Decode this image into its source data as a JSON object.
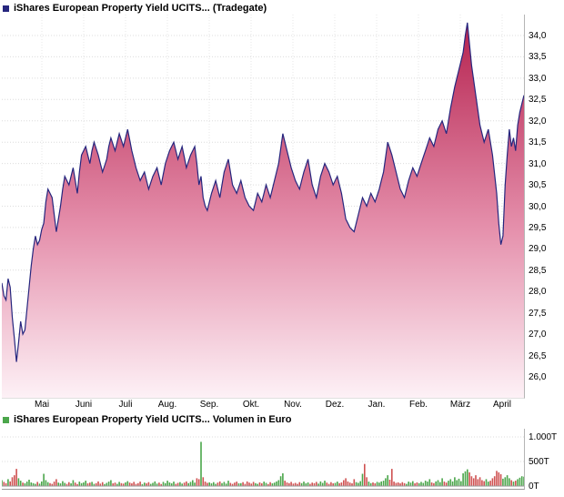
{
  "chart_data": [
    {
      "type": "area",
      "title": "iShares European Property Yield UCITS... (Tradegate)",
      "xlabel": "",
      "ylabel": "",
      "ylim": [
        26.0,
        34.0
      ],
      "y_tick_step": 0.5,
      "grid": true,
      "legend_position": "none",
      "line_color": "#26267e",
      "fill_top_color": "#b5224f",
      "fill_mid_color": "#e590ac",
      "fill_bottom_color": "#fdf1f6",
      "y_ticks": [
        "34,0",
        "33,5",
        "33,0",
        "32,5",
        "32,0",
        "31,5",
        "31,0",
        "30,5",
        "30,0",
        "29,5",
        "29,0",
        "28,5",
        "28,0",
        "27,5",
        "27,0",
        "26,5",
        "26,0"
      ],
      "x_ticks": [
        "Mai",
        "Juni",
        "Juli",
        "Aug.",
        "Sep.",
        "Okt.",
        "Nov.",
        "Dez.",
        "Jan.",
        "Feb.",
        "März",
        "April"
      ],
      "prices": [
        28.2,
        27.9,
        27.8,
        28.3,
        28.1,
        27.4,
        26.9,
        26.35,
        26.8,
        27.3,
        27.0,
        27.1,
        27.6,
        28.1,
        28.6,
        29.0,
        29.3,
        29.1,
        29.2,
        29.45,
        29.6,
        30.1,
        30.4,
        30.3,
        30.2,
        29.8,
        29.4,
        29.7,
        30.0,
        30.4,
        30.7,
        30.6,
        30.5,
        30.7,
        30.9,
        30.6,
        30.3,
        30.8,
        31.2,
        31.3,
        31.4,
        31.2,
        31.0,
        31.3,
        31.5,
        31.35,
        31.2,
        31.0,
        30.8,
        30.95,
        31.1,
        31.4,
        31.6,
        31.45,
        31.3,
        31.5,
        31.7,
        31.55,
        31.4,
        31.6,
        31.8,
        31.55,
        31.3,
        31.1,
        30.9,
        30.75,
        30.6,
        30.7,
        30.8,
        30.6,
        30.4,
        30.55,
        30.7,
        30.8,
        30.9,
        30.7,
        30.5,
        30.75,
        31.0,
        31.15,
        31.3,
        31.4,
        31.5,
        31.3,
        31.1,
        31.25,
        31.4,
        31.15,
        30.9,
        31.05,
        31.2,
        31.3,
        31.4,
        31.0,
        30.5,
        30.7,
        30.2,
        30.0,
        29.9,
        30.1,
        30.3,
        30.45,
        30.6,
        30.4,
        30.2,
        30.5,
        30.8,
        30.95,
        31.1,
        30.8,
        30.5,
        30.4,
        30.3,
        30.45,
        30.6,
        30.4,
        30.2,
        30.1,
        30.0,
        29.95,
        29.9,
        30.1,
        30.3,
        30.2,
        30.1,
        30.3,
        30.5,
        30.35,
        30.2,
        30.4,
        30.6,
        30.8,
        31.0,
        31.35,
        31.7,
        31.5,
        31.3,
        31.1,
        30.9,
        30.75,
        30.6,
        30.5,
        30.4,
        30.6,
        30.8,
        30.95,
        31.1,
        30.8,
        30.5,
        30.35,
        30.2,
        30.45,
        30.7,
        30.85,
        31.0,
        30.9,
        30.8,
        30.65,
        30.5,
        30.6,
        30.7,
        30.5,
        30.3,
        30.0,
        29.7,
        29.6,
        29.5,
        29.45,
        29.4,
        29.6,
        29.8,
        30.0,
        30.2,
        30.1,
        30.0,
        30.15,
        30.3,
        30.2,
        30.1,
        30.25,
        30.4,
        30.6,
        30.8,
        31.15,
        31.5,
        31.35,
        31.2,
        31.0,
        30.8,
        30.6,
        30.4,
        30.3,
        30.2,
        30.4,
        30.6,
        30.75,
        30.9,
        30.8,
        30.7,
        30.85,
        31.0,
        31.15,
        31.3,
        31.45,
        31.6,
        31.5,
        31.4,
        31.6,
        31.8,
        31.9,
        32.0,
        31.85,
        31.7,
        32.0,
        32.3,
        32.55,
        32.8,
        33.0,
        33.2,
        33.4,
        33.6,
        34.0,
        34.3,
        33.8,
        33.3,
        32.95,
        32.6,
        32.25,
        31.9,
        31.7,
        31.5,
        31.65,
        31.8,
        31.5,
        31.2,
        30.75,
        30.3,
        29.6,
        29.1,
        29.3,
        30.5,
        31.2,
        31.8,
        31.4,
        31.6,
        31.3,
        31.9,
        32.2,
        32.4,
        32.6
      ]
    },
    {
      "type": "bar",
      "title": "iShares European Property Yield UCITS... Volumen in Euro",
      "xlabel": "",
      "ylabel": "Volumen in Euro",
      "ylim": [
        0,
        1000
      ],
      "unit": "T",
      "grid": true,
      "legend_position": "none",
      "up_color": "#4ba64b",
      "down_color": "#cf5252",
      "y_ticks": [
        "1.000T",
        "500T",
        "0T"
      ],
      "volumes": [
        120,
        85,
        60,
        140,
        95,
        180,
        220,
        350,
        160,
        110,
        70,
        55,
        90,
        130,
        75,
        60,
        45,
        85,
        50,
        95,
        250,
        120,
        80,
        60,
        45,
        90,
        140,
        70,
        55,
        100,
        65,
        45,
        80,
        55,
        120,
        70,
        40,
        90,
        60,
        75,
        110,
        55,
        70,
        85,
        45,
        60,
        95,
        50,
        80,
        40,
        65,
        90,
        120,
        55,
        70,
        45,
        85,
        60,
        50,
        75,
        100,
        70,
        55,
        85,
        45,
        60,
        90,
        40,
        70,
        55,
        80,
        45,
        65,
        95,
        50,
        70,
        40,
        85,
        60,
        110,
        75,
        55,
        90,
        45,
        65,
        80,
        50,
        70,
        95,
        60,
        85,
        120,
        70,
        160,
        140,
        900,
        180,
        90,
        65,
        75,
        55,
        80,
        45,
        70,
        95,
        60,
        85,
        50,
        110,
        65,
        45,
        70,
        90,
        55,
        60,
        80,
        45,
        95,
        70,
        50,
        85,
        60,
        45,
        75,
        55,
        90,
        65,
        40,
        80,
        55,
        70,
        95,
        120,
        200,
        260,
        110,
        75,
        60,
        85,
        50,
        65,
        45,
        80,
        60,
        90,
        55,
        75,
        45,
        70,
        60,
        85,
        50,
        95,
        65,
        110,
        70,
        45,
        80,
        55,
        65,
        90,
        60,
        75,
        120,
        160,
        95,
        70,
        55,
        140,
        80,
        65,
        100,
        250,
        450,
        180,
        90,
        60,
        75,
        55,
        85,
        70,
        95,
        110,
        160,
        220,
        130,
        350,
        90,
        65,
        75,
        55,
        80,
        60,
        45,
        90,
        70,
        100,
        55,
        75,
        60,
        85,
        65,
        110,
        90,
        140,
        75,
        60,
        95,
        120,
        80,
        160,
        90,
        70,
        110,
        140,
        95,
        180,
        120,
        150,
        100,
        260,
        300,
        340,
        280,
        200,
        160,
        220,
        140,
        180,
        120,
        100,
        140,
        90,
        110,
        160,
        200,
        310,
        280,
        240,
        150,
        180,
        220,
        160,
        120,
        90,
        110,
        140,
        170,
        200,
        190
      ]
    }
  ]
}
